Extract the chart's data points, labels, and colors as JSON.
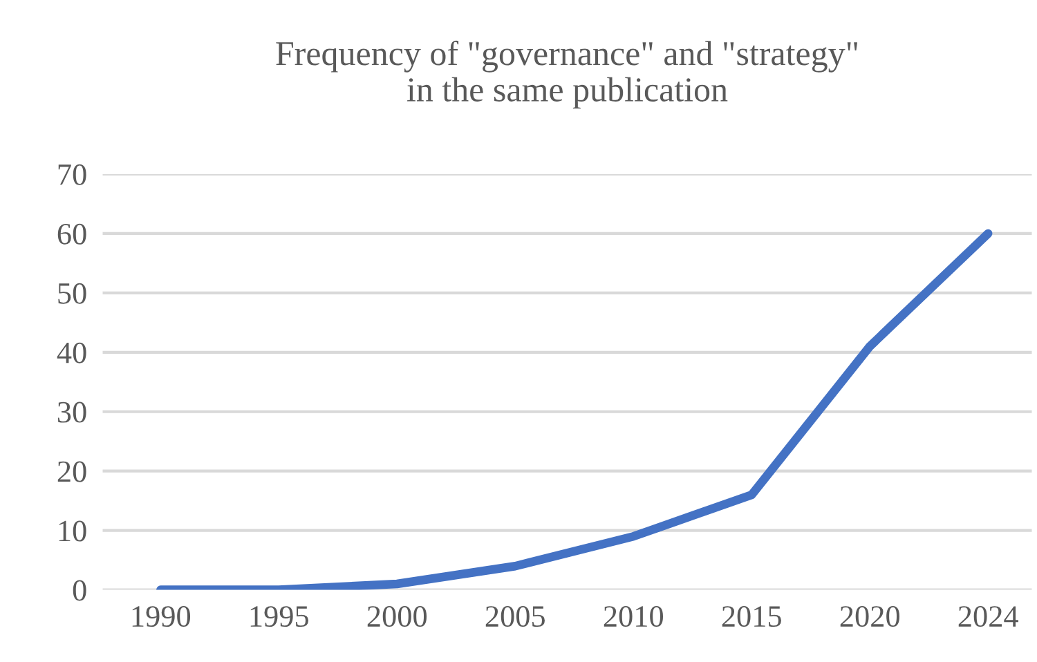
{
  "chart_data": {
    "type": "line",
    "title": "Frequency of \"governance\" and \"strategy\"\nin the same publication",
    "categories": [
      "1990",
      "1995",
      "2000",
      "2005",
      "2010",
      "2015",
      "2020",
      "2024"
    ],
    "series": [
      {
        "color": "#4472c4",
        "values": [
          0,
          0,
          1,
          4,
          9,
          16,
          41,
          60
        ]
      }
    ],
    "ylim": [
      0,
      70
    ],
    "yticks": [
      0,
      10,
      20,
      30,
      40,
      50,
      60,
      70
    ],
    "grid": "y",
    "marker": "none",
    "line_style": "solid"
  }
}
